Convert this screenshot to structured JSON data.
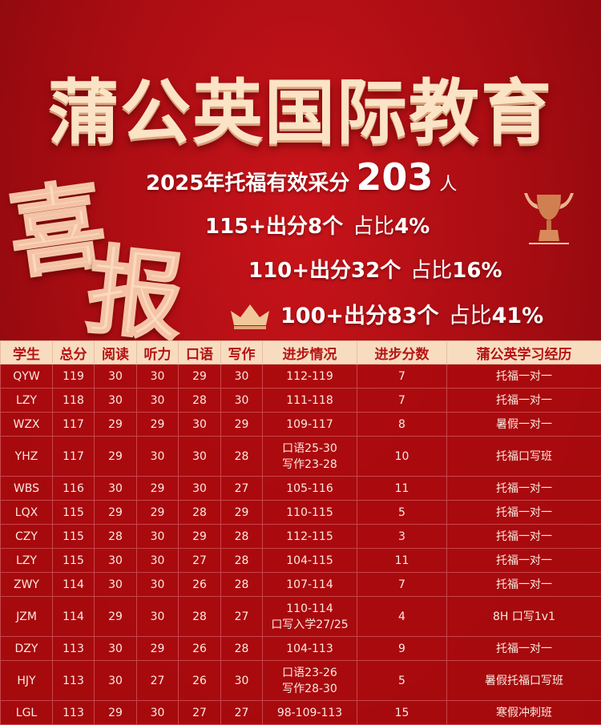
{
  "title": "蒲公英国际教育",
  "badge": {
    "char1": "喜",
    "char2": "报"
  },
  "headline": {
    "prefix": "2025年托福有效采分",
    "count": "203",
    "unit": "人"
  },
  "stats": [
    {
      "label": "115+出分8个",
      "pct_prefix": "占比",
      "pct": "4%"
    },
    {
      "label": "110+出分32个",
      "pct_prefix": "占比",
      "pct": "16%"
    },
    {
      "label": "100+出分83个",
      "pct_prefix": "占比",
      "pct": "41%"
    }
  ],
  "icons": [
    "trophy-icon",
    "crown-icon"
  ],
  "colors": {
    "background": "#a50c12",
    "header_bg": "#f7dcc0",
    "header_text": "#b51313",
    "title": "#fbe3c6"
  },
  "table": {
    "headers": [
      "学生",
      "总分",
      "阅读",
      "听力",
      "口语",
      "写作",
      "进步情况",
      "进步分数",
      "蒲公英学习经历"
    ],
    "rows": [
      [
        "QYW",
        "119",
        "30",
        "30",
        "29",
        "30",
        [
          "112-119"
        ],
        "7",
        "托福一对一"
      ],
      [
        "LZY",
        "118",
        "30",
        "30",
        "28",
        "30",
        [
          "111-118"
        ],
        "7",
        "托福一对一"
      ],
      [
        "WZX",
        "117",
        "29",
        "29",
        "30",
        "29",
        [
          "109-117"
        ],
        "8",
        "暑假一对一"
      ],
      [
        "YHZ",
        "117",
        "29",
        "30",
        "30",
        "28",
        [
          "口语25-30",
          "写作23-28"
        ],
        "10",
        "托福口写班"
      ],
      [
        "WBS",
        "116",
        "30",
        "29",
        "30",
        "27",
        [
          "105-116"
        ],
        "11",
        "托福一对一"
      ],
      [
        "LQX",
        "115",
        "29",
        "29",
        "28",
        "29",
        [
          "110-115"
        ],
        "5",
        "托福一对一"
      ],
      [
        "CZY",
        "115",
        "28",
        "30",
        "29",
        "28",
        [
          "112-115"
        ],
        "3",
        "托福一对一"
      ],
      [
        "LZY",
        "115",
        "30",
        "30",
        "27",
        "28",
        [
          "104-115"
        ],
        "11",
        "托福一对一"
      ],
      [
        "ZWY",
        "114",
        "30",
        "30",
        "26",
        "28",
        [
          "107-114"
        ],
        "7",
        "托福一对一"
      ],
      [
        "JZM",
        "114",
        "29",
        "30",
        "28",
        "27",
        [
          "110-114",
          "口写入学27/25"
        ],
        "4",
        "8H 口写1v1"
      ],
      [
        "DZY",
        "113",
        "30",
        "29",
        "26",
        "28",
        [
          "104-113"
        ],
        "9",
        "托福一对一"
      ],
      [
        "HJY",
        "113",
        "30",
        "27",
        "26",
        "30",
        [
          "口语23-26",
          "写作28-30"
        ],
        "5",
        "暑假托福口写班"
      ],
      [
        "LGL",
        "113",
        "29",
        "30",
        "27",
        "27",
        [
          "98-109-113"
        ],
        "15",
        "寒假冲刺班"
      ]
    ]
  }
}
